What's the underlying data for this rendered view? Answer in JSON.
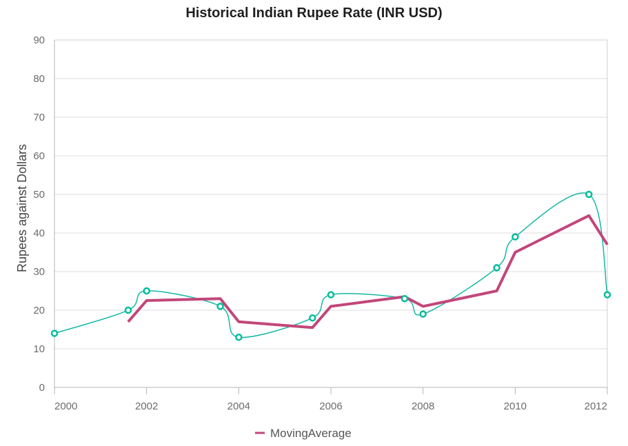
{
  "chart_data": {
    "type": "line",
    "title": "Historical Indian Rupee Rate (INR USD)",
    "xlabel": "",
    "ylabel": "Rupees against Dollars",
    "xlim": [
      2000,
      2012
    ],
    "ylim": [
      0,
      90
    ],
    "y_ticks": [
      0,
      10,
      20,
      30,
      40,
      50,
      60,
      70,
      80,
      90
    ],
    "x_ticks": [
      2000,
      2002,
      2004,
      2006,
      2008,
      2010,
      2012
    ],
    "grid": "horizontal",
    "series": [
      {
        "style": "spline-with-markers",
        "color": "#14b7a6",
        "marker_color": "#00bd9c",
        "x": [
          2000,
          2001.6,
          2002,
          2003.6,
          2004,
          2005.6,
          2006,
          2007.6,
          2008,
          2009.6,
          2010,
          2011.6,
          2012
        ],
        "values": [
          14,
          20,
          25,
          21,
          13,
          18,
          24,
          23,
          19,
          31,
          39,
          50,
          24
        ]
      },
      {
        "name": "MovingAverage",
        "style": "line",
        "color": "#c2467a",
        "x": [
          2001.6,
          2002,
          2003.6,
          2004,
          2005.6,
          2006,
          2007.6,
          2008,
          2009.6,
          2010,
          2011.6,
          2012
        ],
        "values": [
          17,
          22.5,
          23,
          17,
          15.5,
          21,
          23.5,
          21,
          25,
          35,
          44.5,
          37
        ]
      }
    ],
    "legend": {
      "position": "bottom-center",
      "entries": [
        "MovingAverage"
      ]
    }
  }
}
